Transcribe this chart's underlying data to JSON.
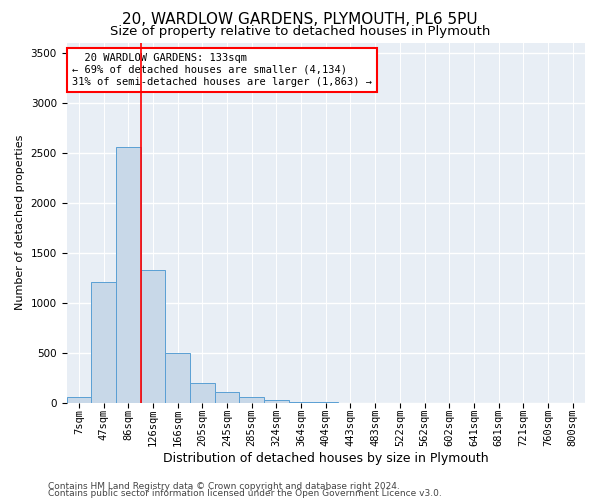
{
  "title": "20, WARDLOW GARDENS, PLYMOUTH, PL6 5PU",
  "subtitle": "Size of property relative to detached houses in Plymouth",
  "xlabel": "Distribution of detached houses by size in Plymouth",
  "ylabel": "Number of detached properties",
  "footnote1": "Contains HM Land Registry data © Crown copyright and database right 2024.",
  "footnote2": "Contains public sector information licensed under the Open Government Licence v3.0.",
  "bar_labels": [
    "7sqm",
    "47sqm",
    "86sqm",
    "126sqm",
    "166sqm",
    "205sqm",
    "245sqm",
    "285sqm",
    "324sqm",
    "364sqm",
    "404sqm",
    "443sqm",
    "483sqm",
    "522sqm",
    "562sqm",
    "602sqm",
    "641sqm",
    "681sqm",
    "721sqm",
    "760sqm",
    "800sqm"
  ],
  "bar_values": [
    55,
    1210,
    2560,
    1330,
    500,
    195,
    110,
    55,
    25,
    10,
    5,
    0,
    0,
    0,
    0,
    0,
    0,
    0,
    0,
    0,
    0
  ],
  "bar_color": "#c8d8e8",
  "bar_edge_color": "#5a9fd4",
  "red_line_index": 3,
  "annotation_text": "  20 WARDLOW GARDENS: 133sqm\n← 69% of detached houses are smaller (4,134)\n31% of semi-detached houses are larger (1,863) →",
  "annotation_box_color": "white",
  "annotation_box_edge": "red",
  "ylim": [
    0,
    3600
  ],
  "yticks": [
    0,
    500,
    1000,
    1500,
    2000,
    2500,
    3000,
    3500
  ],
  "title_fontsize": 11,
  "subtitle_fontsize": 9.5,
  "xlabel_fontsize": 9,
  "ylabel_fontsize": 8,
  "tick_fontsize": 7.5,
  "annot_fontsize": 7.5,
  "footnote_fontsize": 6.5,
  "background_color": "#e8eef5",
  "grid_color": "white"
}
